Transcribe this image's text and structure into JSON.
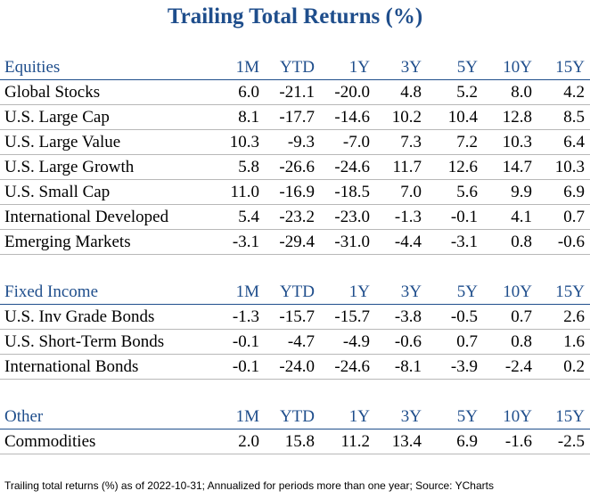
{
  "title": "Trailing Total Returns (%)",
  "columns": [
    "1M",
    "YTD",
    "1Y",
    "3Y",
    "5Y",
    "10Y",
    "15Y"
  ],
  "sections": [
    {
      "label": "Equities",
      "rows": [
        {
          "name": "Global Stocks",
          "values": [
            "6.0",
            "-21.1",
            "-20.0",
            "4.8",
            "5.2",
            "8.0",
            "4.2"
          ]
        },
        {
          "name": "U.S. Large Cap",
          "values": [
            "8.1",
            "-17.7",
            "-14.6",
            "10.2",
            "10.4",
            "12.8",
            "8.5"
          ]
        },
        {
          "name": "U.S. Large Value",
          "values": [
            "10.3",
            "-9.3",
            "-7.0",
            "7.3",
            "7.2",
            "10.3",
            "6.4"
          ]
        },
        {
          "name": "U.S. Large Growth",
          "values": [
            "5.8",
            "-26.6",
            "-24.6",
            "11.7",
            "12.6",
            "14.7",
            "10.3"
          ]
        },
        {
          "name": "U.S. Small Cap",
          "values": [
            "11.0",
            "-16.9",
            "-18.5",
            "7.0",
            "5.6",
            "9.9",
            "6.9"
          ]
        },
        {
          "name": "International Developed",
          "values": [
            "5.4",
            "-23.2",
            "-23.0",
            "-1.3",
            "-0.1",
            "4.1",
            "0.7"
          ]
        },
        {
          "name": "Emerging Markets",
          "values": [
            "-3.1",
            "-29.4",
            "-31.0",
            "-4.4",
            "-3.1",
            "0.8",
            "-0.6"
          ]
        }
      ]
    },
    {
      "label": "Fixed Income",
      "rows": [
        {
          "name": "U.S. Inv Grade Bonds",
          "values": [
            "-1.3",
            "-15.7",
            "-15.7",
            "-3.8",
            "-0.5",
            "0.7",
            "2.6"
          ]
        },
        {
          "name": "U.S. Short-Term Bonds",
          "values": [
            "-0.1",
            "-4.7",
            "-4.9",
            "-0.6",
            "0.7",
            "0.8",
            "1.6"
          ]
        },
        {
          "name": "International Bonds",
          "values": [
            "-0.1",
            "-24.0",
            "-24.6",
            "-8.1",
            "-3.9",
            "-2.4",
            "0.2"
          ]
        }
      ]
    },
    {
      "label": "Other",
      "rows": [
        {
          "name": "Commodities",
          "values": [
            "2.0",
            "15.8",
            "11.2",
            "13.4",
            "6.9",
            "-1.6",
            "-2.5"
          ]
        }
      ]
    }
  ],
  "footnote": "Trailing total returns (%) as of 2022-10-31; Annualized for periods more than one year; Source: YCharts",
  "colors": {
    "accent": "#1f4e8c",
    "rule": "#b8b8b8"
  }
}
